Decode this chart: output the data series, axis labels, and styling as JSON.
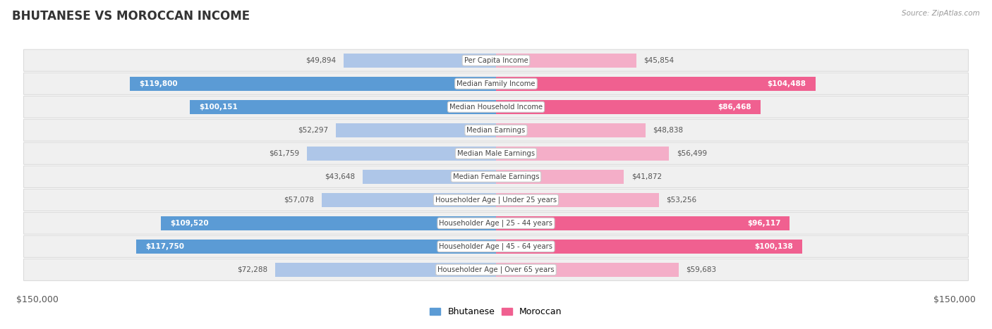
{
  "title": "BHUTANESE VS MOROCCAN INCOME",
  "source": "Source: ZipAtlas.com",
  "categories": [
    "Per Capita Income",
    "Median Family Income",
    "Median Household Income",
    "Median Earnings",
    "Median Male Earnings",
    "Median Female Earnings",
    "Householder Age | Under 25 years",
    "Householder Age | 25 - 44 years",
    "Householder Age | 45 - 64 years",
    "Householder Age | Over 65 years"
  ],
  "bhutanese_values": [
    49894,
    119800,
    100151,
    52297,
    61759,
    43648,
    57078,
    109520,
    117750,
    72288
  ],
  "moroccan_values": [
    45854,
    104488,
    86468,
    48838,
    56499,
    41872,
    53256,
    96117,
    100138,
    59683
  ],
  "bhutanese_labels": [
    "$49,894",
    "$119,800",
    "$100,151",
    "$52,297",
    "$61,759",
    "$43,648",
    "$57,078",
    "$109,520",
    "$117,750",
    "$72,288"
  ],
  "moroccan_labels": [
    "$45,854",
    "$104,488",
    "$86,468",
    "$48,838",
    "$56,499",
    "$41,872",
    "$53,256",
    "$96,117",
    "$100,138",
    "$59,683"
  ],
  "max_value": 150000,
  "blue_light": "#aec6e8",
  "blue_dark": "#5b9bd5",
  "pink_light": "#f4aec8",
  "pink_dark": "#f06090",
  "blue_threshold": 80000,
  "pink_threshold": 80000,
  "row_bg": "#f0f0f0",
  "row_border": "#d8d8d8",
  "blue_legend": "Bhutanese",
  "pink_legend": "Moroccan"
}
